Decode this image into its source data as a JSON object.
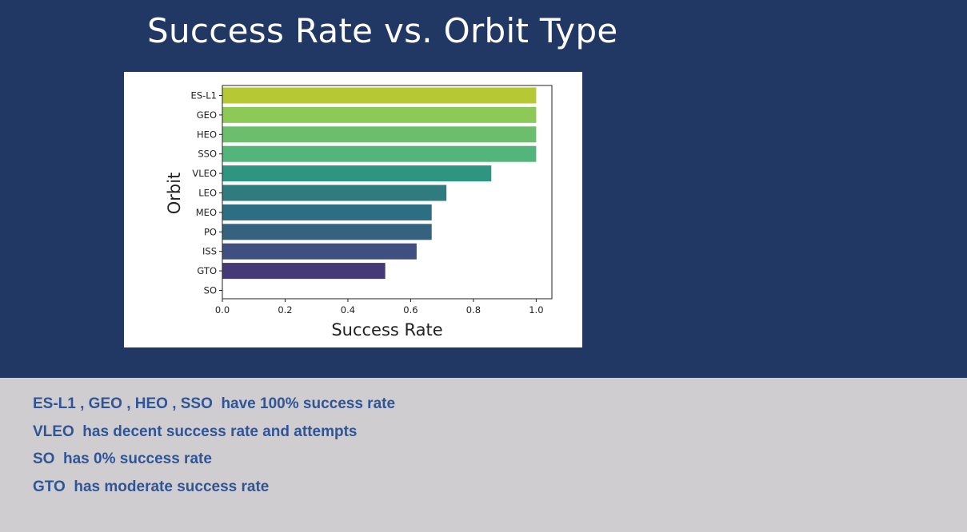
{
  "slide": {
    "title": "Success Rate vs. Orbit Type",
    "colors": {
      "top_background": "#213764",
      "bottom_background": "#cfcdcf",
      "notes_text": "#2f5597"
    }
  },
  "chart_data": {
    "type": "bar",
    "orientation": "horizontal",
    "categories": [
      "ES-L1",
      "GEO",
      "HEO",
      "SSO",
      "VLEO",
      "LEO",
      "MEO",
      "PO",
      "ISS",
      "GTO",
      "SO"
    ],
    "values": [
      1.0,
      1.0,
      1.0,
      1.0,
      0.857,
      0.714,
      0.667,
      0.667,
      0.619,
      0.519,
      0.0
    ],
    "bar_colors": [
      "#b6c935",
      "#8dc956",
      "#6bbf6c",
      "#53b57a",
      "#2e9680",
      "#2f7b7e",
      "#2d6e82",
      "#35637f",
      "#3f4f80",
      "#453a76",
      "#44146a"
    ],
    "xlabel": "Success Rate",
    "ylabel": "Orbit",
    "xlim": [
      0.0,
      1.05
    ],
    "xticks": [
      "0.0",
      "0.2",
      "0.4",
      "0.6",
      "0.8",
      "1.0"
    ],
    "grid": false
  },
  "notes": [
    "ES-L1 , GEO , HEO , SSO  have 100% success rate",
    "VLEO  has decent success rate and attempts",
    "SO  has 0% success rate",
    "GTO  has moderate success rate"
  ]
}
